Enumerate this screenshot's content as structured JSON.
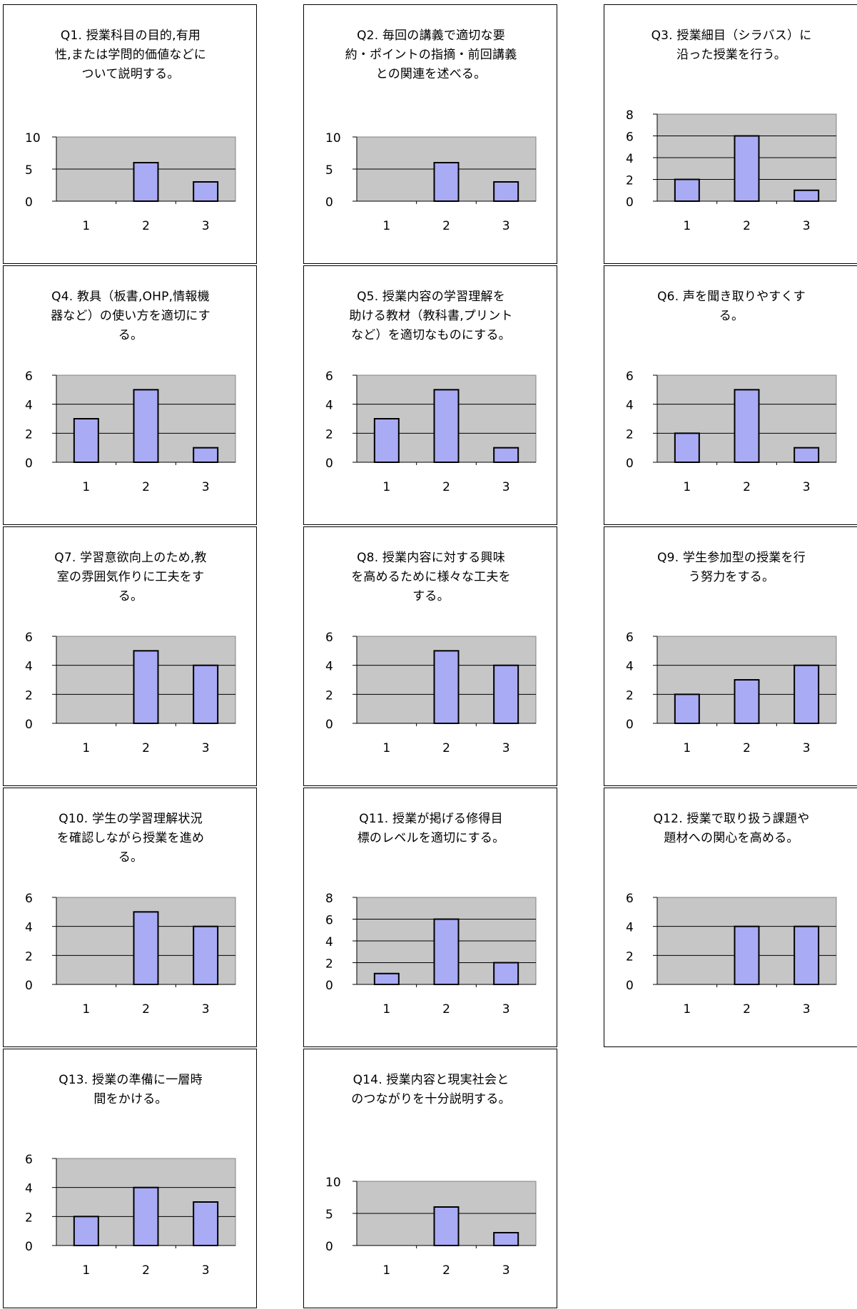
{
  "chart_data": [
    {
      "type": "bar",
      "title": "Q1. 授業科目の目的,有用性,または学問的価値などについて説明する。",
      "title_lines": [
        "Q1. 授業科目の目的,有用",
        "性,または学問的価値などに",
        "ついて説明する。"
      ],
      "categories": [
        "1",
        "2",
        "3"
      ],
      "values": [
        0,
        6,
        3
      ],
      "ylim": [
        0,
        10
      ],
      "yticks": [
        0,
        5,
        10
      ],
      "grid": true
    },
    {
      "type": "bar",
      "title": "Q2. 毎回の講義で適切な要約・ポイントの指摘・前回講義との関連を述べる。",
      "title_lines": [
        "Q2. 毎回の講義で適切な要",
        "約・ポイントの指摘・前回講義",
        "との関連を述べる。"
      ],
      "categories": [
        "1",
        "2",
        "3"
      ],
      "values": [
        0,
        6,
        3
      ],
      "ylim": [
        0,
        10
      ],
      "yticks": [
        0,
        5,
        10
      ],
      "grid": true
    },
    {
      "type": "bar",
      "title": "Q3. 授業細目（シラバス）に沿った授業を行う。",
      "title_lines": [
        "Q3. 授業細目（シラバス）に",
        "沿った授業を行う。"
      ],
      "categories": [
        "1",
        "2",
        "3"
      ],
      "values": [
        2,
        6,
        1
      ],
      "ylim": [
        0,
        8
      ],
      "yticks": [
        0,
        2,
        4,
        6,
        8
      ],
      "grid": true
    },
    {
      "type": "bar",
      "title": "Q4. 教具（板書,OHP,情報機器など）の使い方を適切にする。",
      "title_lines": [
        "Q4. 教具（板書,OHP,情報機",
        "器など）の使い方を適切にす",
        "る。"
      ],
      "categories": [
        "1",
        "2",
        "3"
      ],
      "values": [
        3,
        5,
        1
      ],
      "ylim": [
        0,
        6
      ],
      "yticks": [
        0,
        2,
        4,
        6
      ],
      "grid": true
    },
    {
      "type": "bar",
      "title": "Q5. 授業内容の学習理解を助ける教材（教科書,プリントなど）を適切なものにする。",
      "title_lines": [
        "Q5. 授業内容の学習理解を",
        "助ける教材（教科書,プリント",
        "など）を適切なものにする。"
      ],
      "categories": [
        "1",
        "2",
        "3"
      ],
      "values": [
        3,
        5,
        1
      ],
      "ylim": [
        0,
        6
      ],
      "yticks": [
        0,
        2,
        4,
        6
      ],
      "grid": true
    },
    {
      "type": "bar",
      "title": "Q6. 声を聞き取りやすくする。",
      "title_lines": [
        "Q6. 声を聞き取りやすくす",
        "る。"
      ],
      "categories": [
        "1",
        "2",
        "3"
      ],
      "values": [
        2,
        5,
        1
      ],
      "ylim": [
        0,
        6
      ],
      "yticks": [
        0,
        2,
        4,
        6
      ],
      "grid": true
    },
    {
      "type": "bar",
      "title": "Q7. 学習意欲向上のため,教室の雰囲気作りに工夫をする。",
      "title_lines": [
        "Q7. 学習意欲向上のため,教",
        "室の雰囲気作りに工夫をす",
        "る。"
      ],
      "categories": [
        "1",
        "2",
        "3"
      ],
      "values": [
        0,
        5,
        4
      ],
      "ylim": [
        0,
        6
      ],
      "yticks": [
        0,
        2,
        4,
        6
      ],
      "grid": true
    },
    {
      "type": "bar",
      "title": "Q8. 授業内容に対する興味を高めるために様々な工夫をする。",
      "title_lines": [
        "Q8. 授業内容に対する興味",
        "を高めるために様々な工夫を",
        "する。"
      ],
      "categories": [
        "1",
        "2",
        "3"
      ],
      "values": [
        0,
        5,
        4
      ],
      "ylim": [
        0,
        6
      ],
      "yticks": [
        0,
        2,
        4,
        6
      ],
      "grid": true
    },
    {
      "type": "bar",
      "title": "Q9. 学生参加型の授業を行う努力をする。",
      "title_lines": [
        "Q9. 学生参加型の授業を行",
        "う努力をする。"
      ],
      "categories": [
        "1",
        "2",
        "3"
      ],
      "values": [
        2,
        3,
        4
      ],
      "ylim": [
        0,
        6
      ],
      "yticks": [
        0,
        2,
        4,
        6
      ],
      "grid": true
    },
    {
      "type": "bar",
      "title": "Q10. 学生の学習理解状況を確認しながら授業を進める。",
      "title_lines": [
        "Q10. 学生の学習理解状況",
        "を確認しながら授業を進め",
        "る。"
      ],
      "categories": [
        "1",
        "2",
        "3"
      ],
      "values": [
        0,
        5,
        4
      ],
      "ylim": [
        0,
        6
      ],
      "yticks": [
        0,
        2,
        4,
        6
      ],
      "grid": true
    },
    {
      "type": "bar",
      "title": "Q11. 授業が掲げる修得目標のレベルを適切にする。",
      "title_lines": [
        "Q11. 授業が掲げる修得目",
        "標のレベルを適切にする。"
      ],
      "categories": [
        "1",
        "2",
        "3"
      ],
      "values": [
        1,
        6,
        2
      ],
      "ylim": [
        0,
        8
      ],
      "yticks": [
        0,
        2,
        4,
        6,
        8
      ],
      "grid": true
    },
    {
      "type": "bar",
      "title": "Q12. 授業で取り扱う課題や題材への関心を高める。",
      "title_lines": [
        "Q12. 授業で取り扱う課題や",
        "題材への関心を高める。"
      ],
      "categories": [
        "1",
        "2",
        "3"
      ],
      "values": [
        0,
        4,
        4
      ],
      "ylim": [
        0,
        6
      ],
      "yticks": [
        0,
        2,
        4,
        6
      ],
      "grid": true
    },
    {
      "type": "bar",
      "title": "Q13. 授業の準備に一層時間をかける。",
      "title_lines": [
        "Q13. 授業の準備に一層時",
        "間をかける。"
      ],
      "categories": [
        "1",
        "2",
        "3"
      ],
      "values": [
        2,
        4,
        3
      ],
      "ylim": [
        0,
        6
      ],
      "yticks": [
        0,
        2,
        4,
        6
      ],
      "grid": true
    },
    {
      "type": "bar",
      "title": "Q14. 授業内容と現実社会とのつながりを十分説明する。",
      "title_lines": [
        "Q14. 授業内容と現実社会と",
        "のつながりを十分説明する。"
      ],
      "categories": [
        "1",
        "2",
        "3"
      ],
      "values": [
        0,
        6,
        2
      ],
      "ylim": [
        0,
        10
      ],
      "yticks": [
        0,
        5,
        10
      ],
      "grid": true
    }
  ],
  "colors": {
    "bar_fill": "#a9abf4",
    "plot_bg": "#c6c6c6",
    "border": "#000000",
    "background": "#ffffff"
  }
}
